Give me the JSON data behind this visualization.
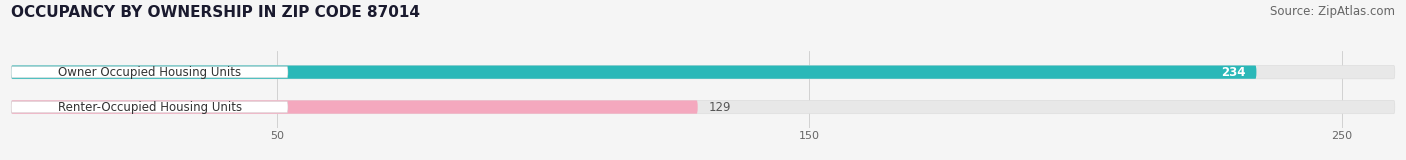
{
  "title": "OCCUPANCY BY OWNERSHIP IN ZIP CODE 87014",
  "source": "Source: ZipAtlas.com",
  "categories": [
    "Owner Occupied Housing Units",
    "Renter-Occupied Housing Units"
  ],
  "values": [
    234,
    129
  ],
  "bar_colors": [
    "#2ab8b8",
    "#f4a8be"
  ],
  "xlim": [
    0,
    260
  ],
  "xticks": [
    50,
    150,
    250
  ],
  "bar_height": 0.38,
  "background_color": "#f5f5f5",
  "title_fontsize": 11,
  "source_fontsize": 8.5,
  "label_fontsize": 8.5,
  "value_fontsize": 8.5,
  "track_color": "#e8e8e8",
  "pill_color": "#ffffff",
  "value_color_on_bar": "#ffffff",
  "value_color_off_bar": "#555555"
}
